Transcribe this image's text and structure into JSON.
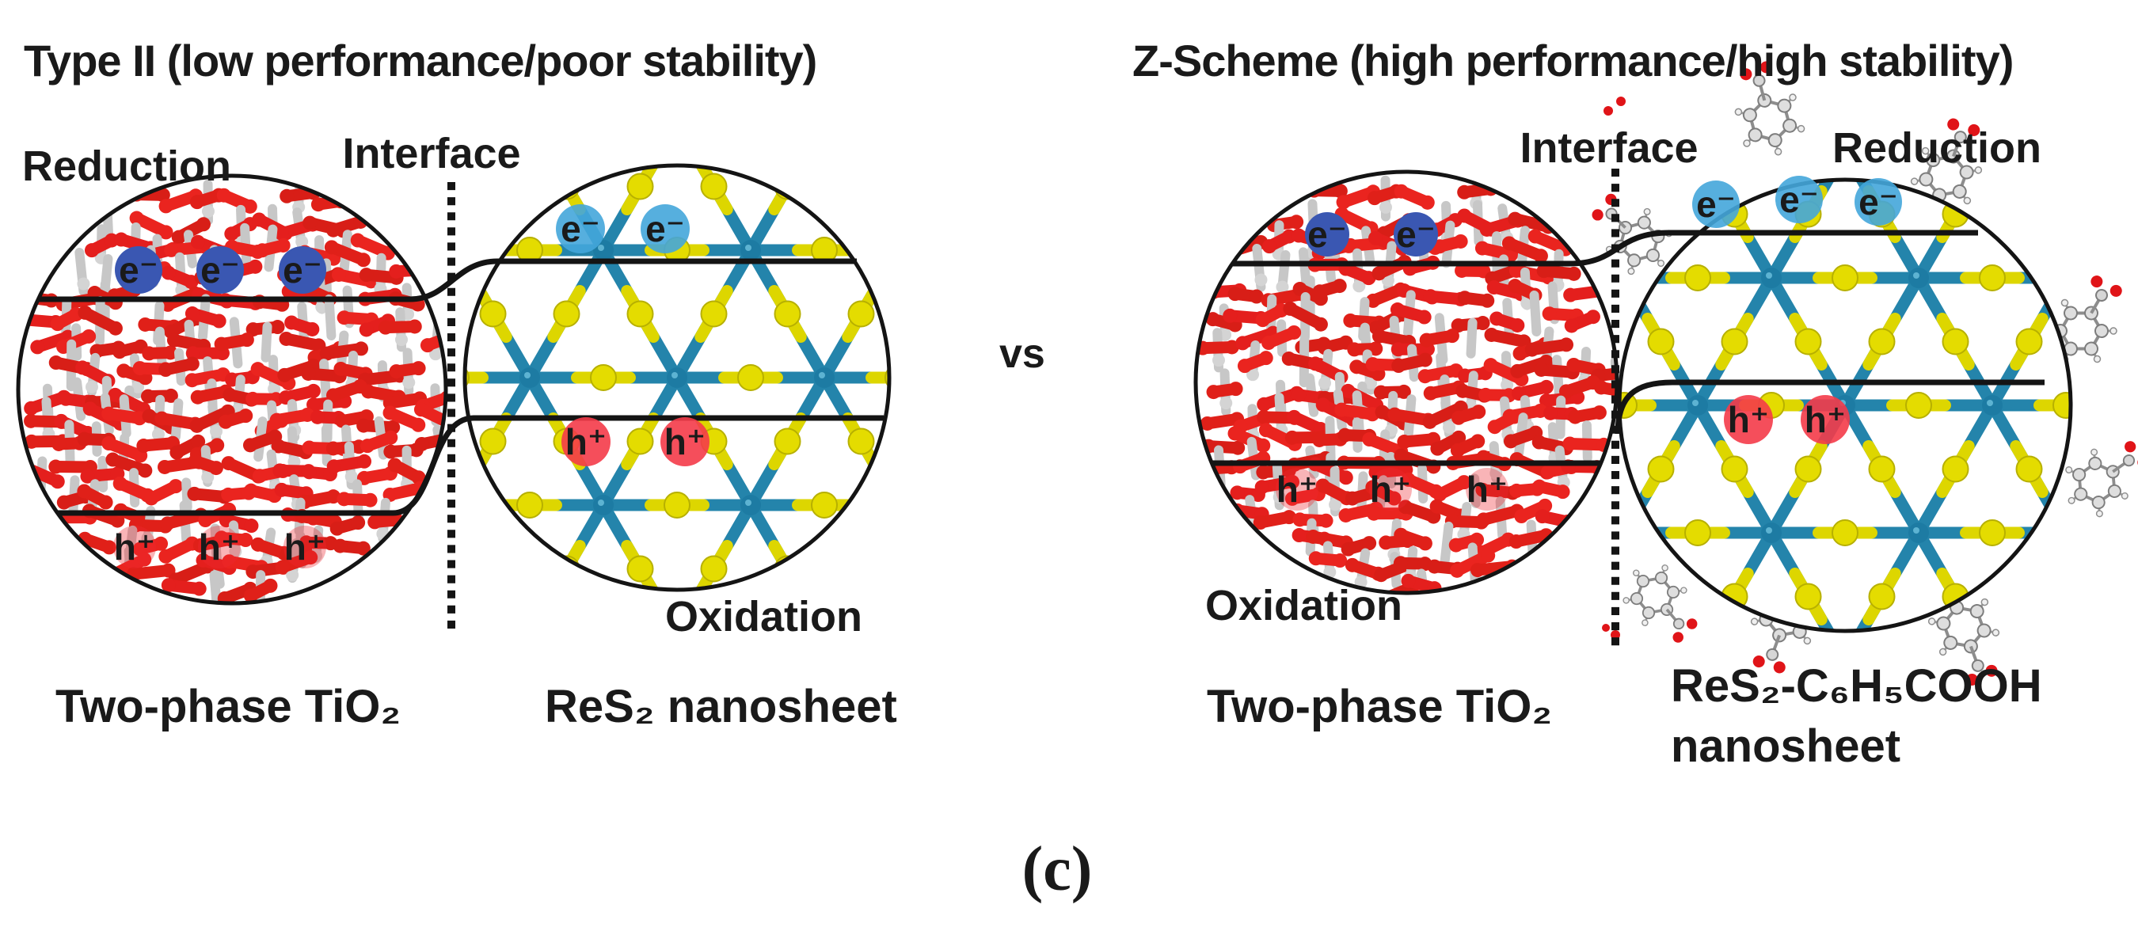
{
  "figure": {
    "caption": "(c)",
    "versus_label": "vs",
    "electron_label": "e⁻",
    "hole_label": "h⁺",
    "colors": {
      "tio2_red": "#e02019",
      "tio2_gray": "#c7c7c7",
      "res2_teal": "#2484ab",
      "res2_yellow": "#ddd600",
      "electron_badge_tio2": "#3a57b2",
      "electron_badge_res2": "#44a6da",
      "hole_badge": "#f43b49",
      "line_black": "#141414",
      "text": "#1a1a1a"
    },
    "panels": [
      {
        "title": "Type II (low performance/poor stability)",
        "reduction_label": "Reduction",
        "interface_label": "Interface",
        "oxidation_label": "Oxidation",
        "left_material": "Two-phase TiO₂",
        "right_material": "ReS₂ nanosheet",
        "right_material_line2": "",
        "tio2_electron_count": 3,
        "tio2_hole_count": 3,
        "res2_electron_count": 2,
        "res2_hole_count": 2
      },
      {
        "title": "Z-Scheme (high performance/high stability)",
        "reduction_label": "Reduction",
        "interface_label": "Interface",
        "oxidation_label": "Oxidation",
        "left_material": "Two-phase TiO₂",
        "right_material": "ReS₂-C₆H₅COOH",
        "right_material_line2": "nanosheet",
        "tio2_electron_count": 2,
        "tio2_hole_count": 3,
        "res2_electron_count": 3,
        "res2_hole_count": 2
      }
    ]
  }
}
